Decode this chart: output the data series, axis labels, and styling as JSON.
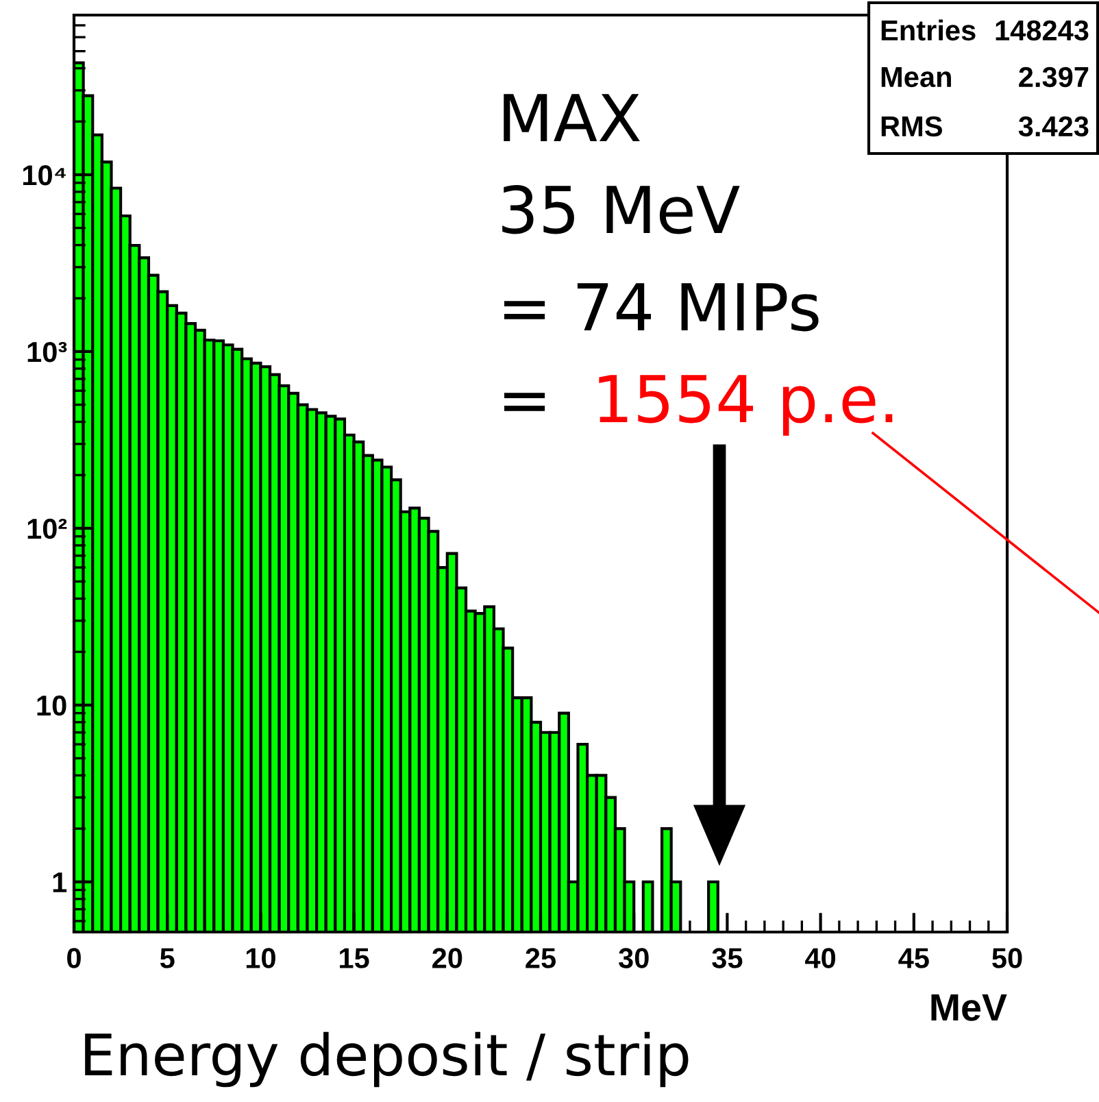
{
  "chart_data": {
    "type": "histogram",
    "xlabel": "MeV",
    "color": "#00ff00",
    "bins": [
      0,
      0.5,
      1,
      1.5,
      2,
      2.5,
      3,
      3.5,
      4,
      4.5,
      5,
      5.5,
      6,
      6.5,
      7,
      7.5,
      8,
      8.5,
      9,
      9.5,
      10,
      10.5,
      11,
      11.5,
      12,
      12.5,
      13,
      13.5,
      14,
      14.5,
      15,
      15.5,
      16,
      16.5,
      17,
      17.5,
      18,
      18.5,
      19,
      19.5,
      20,
      20.5,
      21,
      21.5,
      22,
      22.5,
      23,
      23.5,
      24,
      24.5,
      25,
      25.5,
      26,
      26.5,
      27,
      27.5,
      28,
      28.5,
      29,
      29.5,
      30,
      30.5,
      31,
      31.5,
      32,
      32.5,
      33,
      33.5,
      34,
      34.5,
      35
    ],
    "values": [
      43000,
      28000,
      16800,
      11800,
      8400,
      5850,
      3980,
      3390,
      2700,
      2180,
      1820,
      1650,
      1440,
      1320,
      1160,
      1150,
      1090,
      1030,
      910,
      860,
      820,
      740,
      640,
      580,
      500,
      470,
      450,
      430,
      415,
      337,
      308,
      258,
      243,
      222,
      188,
      124,
      130,
      114,
      96,
      60,
      72,
      46,
      34,
      33,
      36,
      27,
      21,
      11,
      11,
      8,
      7,
      7,
      9,
      1,
      6,
      4,
      4,
      3,
      2,
      1,
      null,
      1,
      null,
      2,
      1,
      null,
      null,
      null,
      1,
      null
    ],
    "log": "y",
    "xlim": [
      0,
      50
    ],
    "ylim": [
      0.52,
      80000
    ],
    "xticks": [
      0,
      5,
      10,
      15,
      20,
      25,
      30,
      35,
      40,
      45,
      50
    ],
    "yticks": [
      1,
      10,
      {
        "value": 100,
        "label": "10²"
      },
      {
        "value": 1000,
        "label": "10³"
      },
      {
        "value": 10000,
        "label": "10⁴"
      }
    ],
    "annotations": [
      "MAX",
      "35 MeV",
      "= 74 MIPs",
      "=",
      "1554 p.e.",
      "Energy deposit / strip",
      "Entries",
      "148243",
      "Mean",
      "2.397",
      "RMS",
      "3.423"
    ]
  }
}
